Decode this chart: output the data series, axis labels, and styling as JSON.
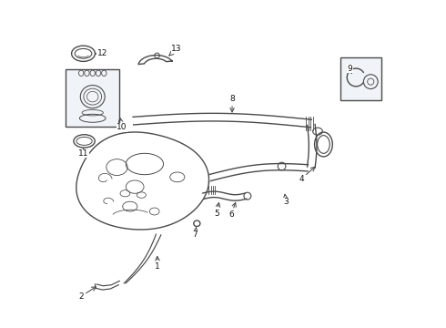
{
  "bg_color": "#ffffff",
  "line_color": "#4a4a4a",
  "label_color": "#111111",
  "lw": 1.0,
  "figsize": [
    4.9,
    3.6
  ],
  "dpi": 100,
  "labels": {
    "1": [
      0.31,
      0.195,
      0.305,
      0.23,
      "left"
    ],
    "2": [
      0.075,
      0.1,
      0.095,
      0.12,
      "right"
    ],
    "3": [
      0.69,
      0.39,
      0.68,
      0.42,
      "left"
    ],
    "4": [
      0.74,
      0.46,
      0.755,
      0.49,
      "left"
    ],
    "5": [
      0.49,
      0.355,
      0.49,
      0.385,
      "center"
    ],
    "6": [
      0.53,
      0.35,
      0.53,
      0.375,
      "center"
    ],
    "7": [
      0.42,
      0.29,
      0.42,
      0.315,
      "center"
    ],
    "8": [
      0.53,
      0.7,
      0.53,
      0.66,
      "center"
    ],
    "9": [
      0.88,
      0.79,
      0.895,
      0.77,
      "center"
    ],
    "10": [
      0.175,
      0.61,
      0.155,
      0.61,
      "left"
    ],
    "11": [
      0.075,
      0.53,
      0.075,
      0.555,
      "center"
    ],
    "12": [
      0.125,
      0.84,
      0.095,
      0.84,
      "left"
    ],
    "13": [
      0.355,
      0.85,
      0.33,
      0.825,
      "left"
    ]
  }
}
